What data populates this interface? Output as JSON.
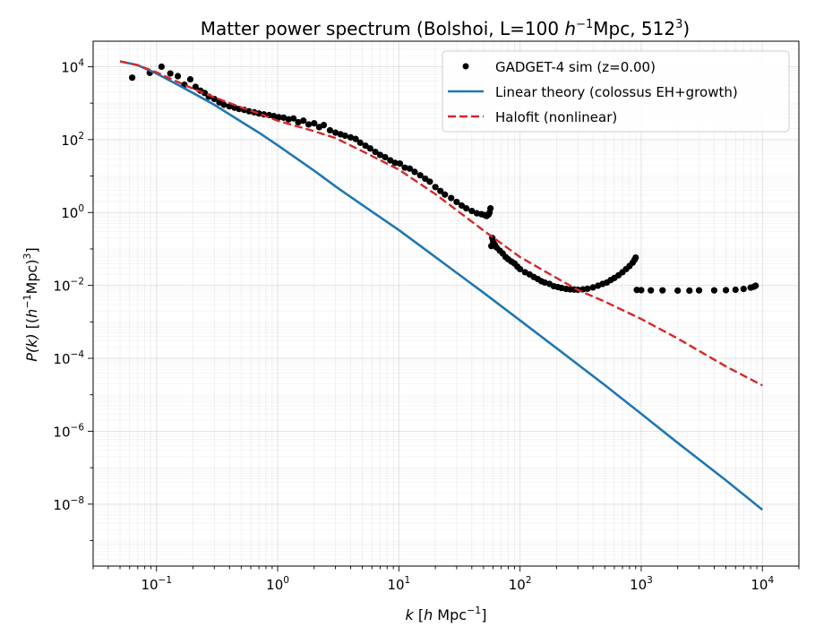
{
  "chart_data": {
    "type": "line",
    "title_main": "Matter power spectrum  (Bolshoi, L=100 ",
    "title_h": "h",
    "title_hexp": "−1",
    "title_mid": "Mpc, 512",
    "title_exp": "3",
    "title_end": ")",
    "xlabel": {
      "k": "k",
      "open": " [",
      "h": "h",
      "unit": " Mpc",
      "exp": "−1",
      "close": "]"
    },
    "ylabel": {
      "p": "P(k)",
      "open": " [(",
      "h": "h",
      "exp1": "−1",
      "unit": "Mpc)",
      "exp2": "3",
      "close": "]"
    },
    "xscale": "log",
    "yscale": "log",
    "xlim": [
      0.03,
      20000
    ],
    "ylim": [
      2e-10,
      50000.0
    ],
    "grid": true,
    "legend_position": "top-right",
    "x_ticks": [
      {
        "value": 0.1,
        "base": "10",
        "exp": "−1"
      },
      {
        "value": 1,
        "base": "10",
        "exp": "0"
      },
      {
        "value": 10,
        "base": "10",
        "exp": "1"
      },
      {
        "value": 100,
        "base": "10",
        "exp": "2"
      },
      {
        "value": 1000,
        "base": "10",
        "exp": "3"
      },
      {
        "value": 10000,
        "base": "10",
        "exp": "4"
      }
    ],
    "y_ticks": [
      {
        "value": 1e-08,
        "base": "10",
        "exp": "−8"
      },
      {
        "value": 1e-06,
        "base": "10",
        "exp": "−6"
      },
      {
        "value": 0.0001,
        "base": "10",
        "exp": "−4"
      },
      {
        "value": 0.01,
        "base": "10",
        "exp": "−2"
      },
      {
        "value": 1,
        "base": "10",
        "exp": "0"
      },
      {
        "value": 100,
        "base": "10",
        "exp": "2"
      },
      {
        "value": 10000,
        "base": "10",
        "exp": "4"
      }
    ],
    "series": [
      {
        "name": "GADGET-4 sim (z=0.00)",
        "style": "scatter",
        "color": "#000000",
        "x": [
          0.063,
          0.088,
          0.11,
          0.13,
          0.15,
          0.17,
          0.19,
          0.21,
          0.23,
          0.25,
          0.27,
          0.3,
          0.33,
          0.36,
          0.4,
          0.44,
          0.48,
          0.53,
          0.58,
          0.64,
          0.7,
          0.77,
          0.85,
          0.93,
          1.02,
          1.12,
          1.23,
          1.35,
          1.48,
          1.63,
          1.8,
          2.0,
          2.2,
          2.4,
          2.7,
          3.0,
          3.3,
          3.6,
          4.0,
          4.4,
          4.8,
          5.3,
          5.8,
          6.4,
          7.0,
          7.7,
          8.5,
          9.3,
          10.2,
          11.2,
          12.3,
          13.5,
          15.0,
          16.5,
          18.0,
          20.0,
          22.0,
          24.0,
          27.0,
          30.0,
          33.0,
          36.0,
          40.0,
          44.0,
          48.0,
          51.0,
          53.0,
          55.0,
          56.0,
          57.0,
          58.0,
          59.0,
          60.0,
          62.0,
          64.0,
          68.0,
          72.0,
          76.0,
          80.0,
          85.0,
          90.0,
          95.0,
          100.0,
          110.0,
          120.0,
          130.0,
          140.0,
          150.0,
          160.0,
          175.0,
          190.0,
          205.0,
          220.0,
          240.0,
          260.0,
          280.0,
          300.0,
          330.0,
          360.0,
          400.0,
          440.0,
          480.0,
          520.0,
          560.0,
          600.0,
          650.0,
          700.0,
          750.0,
          800.0,
          850.0,
          880.0,
          900.0,
          920.0,
          1000.0,
          1200.0,
          1500.0,
          2000.0,
          2500.0,
          3000.0,
          4000.0,
          5000.0,
          6000.0,
          7000.0,
          8000.0,
          8500.0,
          8800.0
        ],
        "y": [
          5000,
          6800,
          10000,
          6500,
          5500,
          3200,
          4500,
          2800,
          2200,
          1900,
          1500,
          1300,
          1050,
          900,
          820,
          750,
          690,
          650,
          600,
          560,
          520,
          490,
          470,
          440,
          410,
          400,
          360,
          380,
          300,
          330,
          260,
          280,
          220,
          250,
          180,
          155,
          140,
          128,
          115,
          104,
          82,
          68,
          57,
          46,
          38,
          33,
          27,
          23,
          22,
          17,
          16,
          13,
          10.5,
          8.5,
          7.0,
          5.0,
          3.9,
          3.1,
          2.5,
          1.95,
          1.55,
          1.3,
          1.1,
          0.95,
          0.9,
          0.85,
          0.8,
          0.88,
          1.0,
          1.3,
          0.12,
          0.2,
          0.16,
          0.13,
          0.11,
          0.09,
          0.075,
          0.06,
          0.052,
          0.045,
          0.04,
          0.033,
          0.028,
          0.023,
          0.02,
          0.017,
          0.015,
          0.013,
          0.012,
          0.011,
          0.0095,
          0.009,
          0.0085,
          0.008,
          0.0078,
          0.0077,
          0.0076,
          0.0078,
          0.0081,
          0.0088,
          0.0098,
          0.011,
          0.012,
          0.014,
          0.016,
          0.019,
          0.023,
          0.028,
          0.034,
          0.042,
          0.05,
          0.058,
          0.0075,
          0.0074,
          0.0073,
          0.0073,
          0.0072,
          0.0072,
          0.0073,
          0.0073,
          0.0074,
          0.0076,
          0.008,
          0.0087,
          0.0092,
          0.0098
        ]
      },
      {
        "name": "Linear theory (colossus EH+growth)",
        "style": "line",
        "color": "#1f77b4",
        "x": [
          0.05,
          0.07,
          0.1,
          0.14,
          0.2,
          0.3,
          0.5,
          0.7,
          1,
          2,
          3,
          5,
          10,
          20,
          50,
          100,
          200,
          500,
          1000,
          2000,
          5000,
          10000
        ],
        "y": [
          14000,
          11000,
          6500,
          3600,
          1900,
          900,
          310,
          155,
          70,
          14,
          5.2,
          1.6,
          0.33,
          0.06,
          0.0063,
          0.0011,
          0.00019,
          1.85e-05,
          3e-06,
          4.8e-07,
          4.5e-08,
          7e-09
        ]
      },
      {
        "name": "Halofit (nonlinear)",
        "style": "dashed",
        "color": "#d62728",
        "x": [
          0.05,
          0.07,
          0.1,
          0.14,
          0.2,
          0.3,
          0.5,
          0.7,
          1,
          2,
          3,
          5,
          10,
          20,
          50,
          100,
          200,
          300,
          500,
          1000,
          2000,
          5000,
          10000
        ],
        "y": [
          14000,
          11000,
          7000,
          4200,
          2500,
          1450,
          760,
          520,
          330,
          170,
          110,
          48,
          15,
          3.2,
          0.32,
          0.06,
          0.016,
          0.0075,
          0.0036,
          0.0012,
          0.00035,
          6e-05,
          1.8e-05
        ]
      }
    ]
  }
}
